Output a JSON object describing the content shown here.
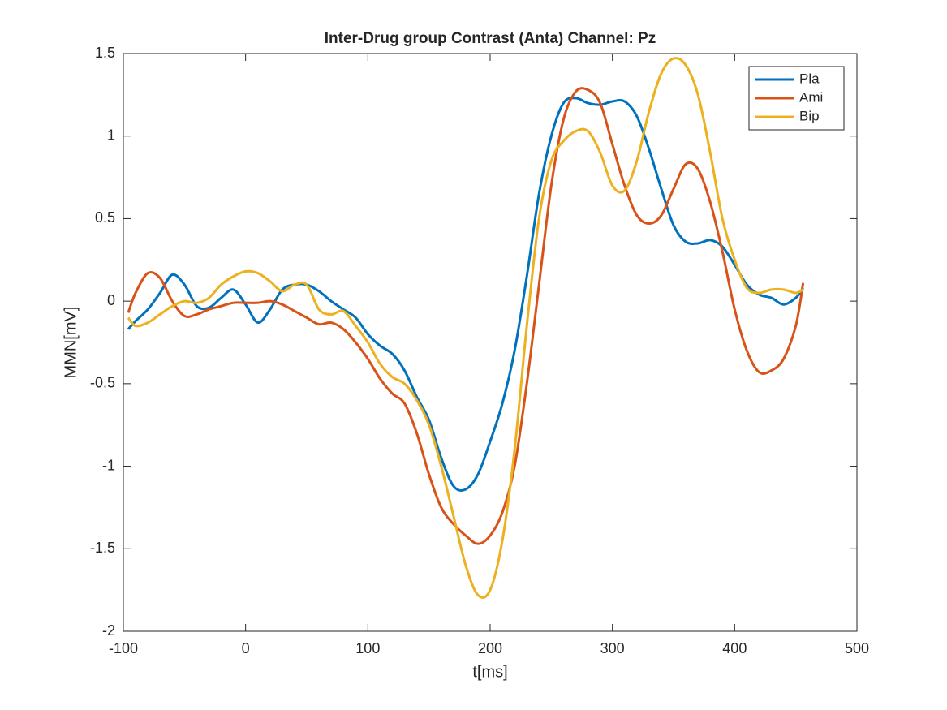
{
  "chart_data": {
    "type": "line",
    "title": "Inter-Drug group Contrast (Anta) Channel: Pz",
    "x_label": "t[ms]",
    "y_label": "MMN[mV]",
    "x": [
      -96,
      -90,
      -80,
      -70,
      -60,
      -50,
      -40,
      -30,
      -20,
      -10,
      0,
      10,
      20,
      30,
      40,
      50,
      60,
      70,
      80,
      90,
      100,
      110,
      120,
      130,
      140,
      150,
      160,
      170,
      180,
      190,
      200,
      210,
      220,
      230,
      240,
      250,
      260,
      270,
      280,
      290,
      300,
      310,
      320,
      330,
      340,
      350,
      360,
      370,
      380,
      390,
      400,
      410,
      420,
      430,
      440,
      450,
      456
    ],
    "series": [
      {
        "name": "Pla",
        "color": "#0072BD",
        "values": [
          -0.17,
          -0.12,
          -0.05,
          0.05,
          0.16,
          0.1,
          -0.03,
          -0.04,
          0.02,
          0.07,
          -0.02,
          -0.13,
          -0.05,
          0.07,
          0.1,
          0.1,
          0.06,
          0.0,
          -0.05,
          -0.1,
          -0.2,
          -0.27,
          -0.32,
          -0.42,
          -0.58,
          -0.72,
          -0.95,
          -1.12,
          -1.14,
          -1.05,
          -0.85,
          -0.62,
          -0.3,
          0.15,
          0.65,
          1.0,
          1.2,
          1.23,
          1.2,
          1.19,
          1.21,
          1.21,
          1.12,
          0.92,
          0.68,
          0.46,
          0.36,
          0.35,
          0.37,
          0.33,
          0.22,
          0.1,
          0.04,
          0.02,
          -0.02,
          0.02,
          0.08
        ]
      },
      {
        "name": "Ami",
        "color": "#D95319",
        "values": [
          -0.07,
          0.05,
          0.17,
          0.14,
          0.0,
          -0.09,
          -0.08,
          -0.05,
          -0.03,
          -0.01,
          -0.01,
          -0.01,
          0.0,
          -0.02,
          -0.06,
          -0.1,
          -0.14,
          -0.13,
          -0.17,
          -0.25,
          -0.35,
          -0.47,
          -0.56,
          -0.62,
          -0.8,
          -1.05,
          -1.25,
          -1.35,
          -1.42,
          -1.47,
          -1.42,
          -1.28,
          -1.0,
          -0.5,
          0.1,
          0.7,
          1.1,
          1.27,
          1.28,
          1.2,
          0.95,
          0.7,
          0.52,
          0.47,
          0.52,
          0.68,
          0.83,
          0.8,
          0.6,
          0.3,
          -0.05,
          -0.3,
          -0.43,
          -0.42,
          -0.35,
          -0.15,
          0.11
        ]
      },
      {
        "name": "Bip",
        "color": "#EDB120",
        "values": [
          -0.1,
          -0.15,
          -0.13,
          -0.08,
          -0.03,
          0.0,
          -0.01,
          0.02,
          0.1,
          0.15,
          0.18,
          0.17,
          0.12,
          0.06,
          0.1,
          0.1,
          -0.05,
          -0.08,
          -0.06,
          -0.15,
          -0.25,
          -0.38,
          -0.46,
          -0.5,
          -0.6,
          -0.75,
          -1.0,
          -1.3,
          -1.6,
          -1.78,
          -1.75,
          -1.45,
          -0.9,
          -0.15,
          0.5,
          0.85,
          0.97,
          1.03,
          1.03,
          0.9,
          0.7,
          0.67,
          0.85,
          1.15,
          1.38,
          1.47,
          1.43,
          1.25,
          0.9,
          0.5,
          0.25,
          0.08,
          0.05,
          0.07,
          0.07,
          0.05,
          0.07
        ]
      }
    ],
    "xlim": [
      -100,
      500
    ],
    "xticks": [
      -100,
      0,
      100,
      200,
      300,
      400,
      500
    ],
    "ylim": [
      -2,
      1.5
    ],
    "yticks": [
      -2,
      -1.5,
      -1,
      -0.5,
      0,
      0.5,
      1,
      1.5
    ],
    "grid": false,
    "legend": "upper right"
  }
}
